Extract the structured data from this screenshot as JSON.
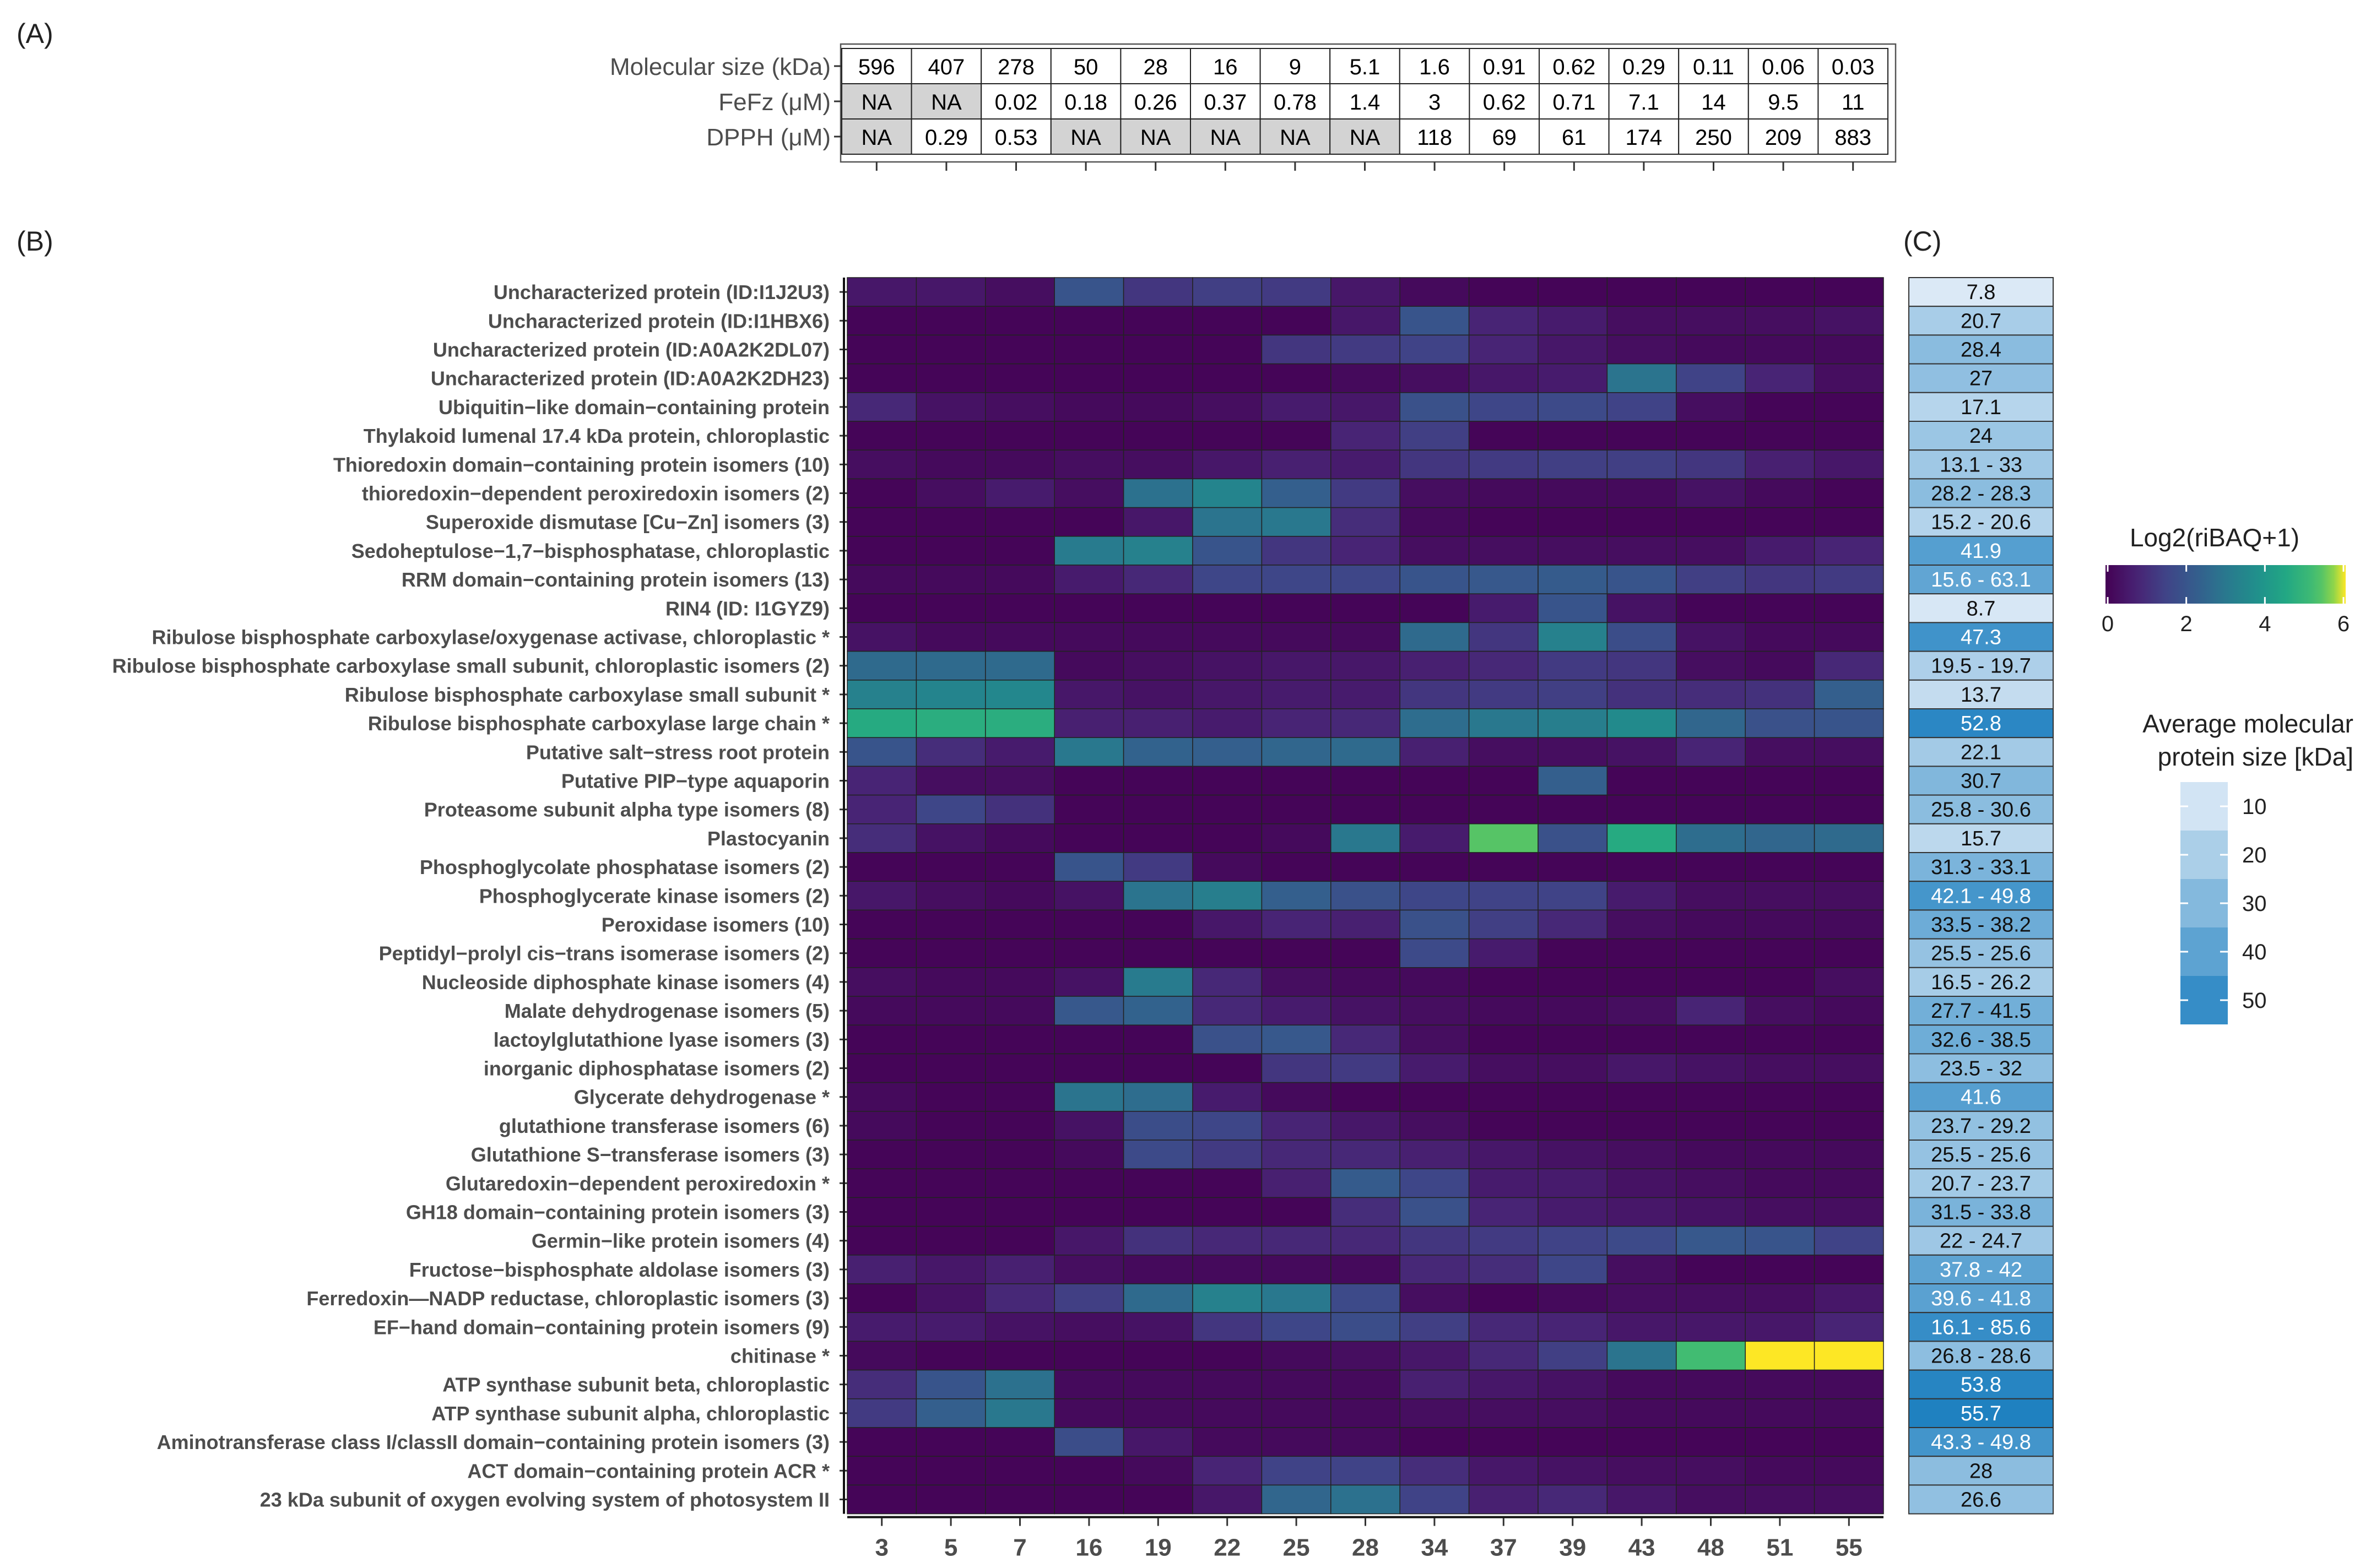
{
  "panel_labels": {
    "a": "(A)",
    "b": "(B)",
    "c": "(C)"
  },
  "chart_data": [
    {
      "type": "table",
      "panel": "(A)",
      "row_labels": [
        "Molecular size (kDa)",
        "FeFz (μM)",
        "DPPH (μM)"
      ],
      "rows": [
        [
          "596",
          "407",
          "278",
          "50",
          "28",
          "16",
          "9",
          "5.1",
          "1.6",
          "0.91",
          "0.62",
          "0.29",
          "0.11",
          "0.06",
          "0.03"
        ],
        [
          "NA",
          "NA",
          "0.02",
          "0.18",
          "0.26",
          "0.37",
          "0.78",
          "1.4",
          "3",
          "0.62",
          "0.71",
          "7.1",
          "14",
          "9.5",
          "11"
        ],
        [
          "NA",
          "0.29",
          "0.53",
          "NA",
          "NA",
          "NA",
          "NA",
          "NA",
          "118",
          "69",
          "61",
          "174",
          "250",
          "209",
          "883"
        ]
      ],
      "na_label": "NA"
    },
    {
      "type": "heatmap",
      "panel": "(B)",
      "x": [
        "3",
        "5",
        "7",
        "16",
        "19",
        "22",
        "25",
        "28",
        "34",
        "37",
        "39",
        "43",
        "48",
        "51",
        "55"
      ],
      "y": [
        "Uncharacterized protein (ID:I1J2U3)",
        "Uncharacterized protein (ID:I1HBX6)",
        "Uncharacterized protein (ID:A0A2K2DL07)",
        "Uncharacterized protein (ID:A0A2K2DH23)",
        "Ubiquitin−like domain−containing protein",
        "Thylakoid lumenal 17.4 kDa protein, chloroplastic",
        "Thioredoxin domain−containing protein isomers (10)",
        "thioredoxin−dependent peroxiredoxin isomers (2)",
        "Superoxide dismutase [Cu−Zn] isomers (3)",
        "Sedoheptulose−1,7−bisphosphatase, chloroplastic",
        "RRM domain−containing protein isomers (13)",
        "RIN4 (ID: I1GYZ9)",
        "Ribulose bisphosphate carboxylase/oxygenase activase, chloroplastic *",
        "Ribulose bisphosphate carboxylase small subunit, chloroplastic isomers (2)",
        "Ribulose bisphosphate carboxylase small subunit *",
        "Ribulose bisphosphate carboxylase large chain *",
        "Putative salt−stress root protein",
        "Putative PIP−type aquaporin",
        "Proteasome subunit alpha type isomers (8)",
        "Plastocyanin",
        "Phosphoglycolate phosphatase isomers (2)",
        "Phosphoglycerate kinase isomers (2)",
        "Peroxidase isomers (10)",
        "Peptidyl−prolyl cis−trans isomerase isomers (2)",
        "Nucleoside diphosphate kinase isomers (4)",
        "Malate dehydrogenase isomers (5)",
        "lactoylglutathione lyase isomers (3)",
        "inorganic diphosphatase isomers (2)",
        "Glycerate dehydrogenase *",
        "glutathione transferase isomers (6)",
        "Glutathione S−transferase isomers (3)",
        "Glutaredoxin−dependent peroxiredoxin *",
        "GH18 domain−containing protein isomers (3)",
        "Germin−like protein isomers (4)",
        "Fructose−bisphosphate aldolase isomers (3)",
        "Ferredoxin—NADP reductase, chloroplastic isomers (3)",
        "EF−hand domain−containing protein isomers (9)",
        "chitinase *",
        "ATP synthase subunit beta, chloroplastic",
        "ATP synthase subunit alpha, chloroplastic",
        "Aminotransferase class I/classII domain−containing protein isomers (3)",
        "ACT domain−containing protein ACR *",
        "23 kDa subunit of oxygen evolving system of photosystem II"
      ],
      "values": [
        [
          0.5,
          0.5,
          0.3,
          2.0,
          1.2,
          1.4,
          1.3,
          0.5,
          0.2,
          0.1,
          0.1,
          0.1,
          0.1,
          0.1,
          0.1
        ],
        [
          0.1,
          0.1,
          0.1,
          0.1,
          0.1,
          0.1,
          0.1,
          0.5,
          2.0,
          0.8,
          0.6,
          0.3,
          0.3,
          0.3,
          0.4
        ],
        [
          0.1,
          0.1,
          0.1,
          0.1,
          0.1,
          0.1,
          1.2,
          1.3,
          1.5,
          0.8,
          0.5,
          0.3,
          0.2,
          0.2,
          0.2
        ],
        [
          0.1,
          0.1,
          0.1,
          0.1,
          0.1,
          0.1,
          0.1,
          0.2,
          0.3,
          0.5,
          0.6,
          2.9,
          1.5,
          0.8,
          0.3
        ],
        [
          0.9,
          0.4,
          0.3,
          0.2,
          0.2,
          0.3,
          0.6,
          0.5,
          1.9,
          1.6,
          1.7,
          1.5,
          0.3,
          0.1,
          0.1
        ],
        [
          0.1,
          0.1,
          0.1,
          0.1,
          0.1,
          0.1,
          0.1,
          0.8,
          1.4,
          0.1,
          0.1,
          0.1,
          0.1,
          0.1,
          0.1
        ],
        [
          0.3,
          0.2,
          0.2,
          0.3,
          0.3,
          0.5,
          0.7,
          0.6,
          1.2,
          1.3,
          1.4,
          1.4,
          1.2,
          0.7,
          0.5
        ],
        [
          0.1,
          0.3,
          0.6,
          0.3,
          2.8,
          3.4,
          2.3,
          1.3,
          0.3,
          0.2,
          0.2,
          0.2,
          0.4,
          0.2,
          0.1
        ],
        [
          0.1,
          0.1,
          0.1,
          0.1,
          0.5,
          2.9,
          3.0,
          1.0,
          0.2,
          0.1,
          0.1,
          0.1,
          0.1,
          0.1,
          0.1
        ],
        [
          0.1,
          0.1,
          0.1,
          3.1,
          3.3,
          2.0,
          1.2,
          0.8,
          0.3,
          0.3,
          0.3,
          0.3,
          0.3,
          0.6,
          0.8
        ],
        [
          0.2,
          0.2,
          0.2,
          0.6,
          0.9,
          1.6,
          1.6,
          1.6,
          2.0,
          2.1,
          2.2,
          2.0,
          1.4,
          1.2,
          1.3
        ],
        [
          0.1,
          0.1,
          0.1,
          0.1,
          0.1,
          0.1,
          0.1,
          0.1,
          0.1,
          0.6,
          2.0,
          0.4,
          0.1,
          0.1,
          0.1
        ],
        [
          0.4,
          0.2,
          0.2,
          0.2,
          0.2,
          0.2,
          0.2,
          0.2,
          2.6,
          1.2,
          3.3,
          1.8,
          0.4,
          0.2,
          0.2
        ],
        [
          2.6,
          2.6,
          2.6,
          0.2,
          0.3,
          0.4,
          0.5,
          0.5,
          0.7,
          0.9,
          1.3,
          1.2,
          0.3,
          0.2,
          0.9
        ],
        [
          3.3,
          3.4,
          3.5,
          0.5,
          0.4,
          0.5,
          0.6,
          0.6,
          1.2,
          1.3,
          1.4,
          1.1,
          1.0,
          1.1,
          2.3
        ],
        [
          4.6,
          4.7,
          4.7,
          0.7,
          0.7,
          0.6,
          0.8,
          0.9,
          2.7,
          3.0,
          3.2,
          3.6,
          2.5,
          1.9,
          2.0
        ],
        [
          2.0,
          1.0,
          0.6,
          3.0,
          2.4,
          2.3,
          2.5,
          2.6,
          0.7,
          0.3,
          0.3,
          0.4,
          0.8,
          0.3,
          0.3
        ],
        [
          0.8,
          0.3,
          0.3,
          0.1,
          0.1,
          0.1,
          0.1,
          0.1,
          0.1,
          0.1,
          2.3,
          0.1,
          0.1,
          0.1,
          0.1
        ],
        [
          0.8,
          1.6,
          1.1,
          0.1,
          0.1,
          0.1,
          0.1,
          0.1,
          0.1,
          0.1,
          0.1,
          0.1,
          0.1,
          0.1,
          0.1
        ],
        [
          1.0,
          0.4,
          0.2,
          0.1,
          0.1,
          0.1,
          0.2,
          3.0,
          0.6,
          5.4,
          1.9,
          4.6,
          2.7,
          2.5,
          2.6
        ],
        [
          0.1,
          0.1,
          0.1,
          2.0,
          1.3,
          0.2,
          0.1,
          0.1,
          0.1,
          0.1,
          0.1,
          0.1,
          0.1,
          0.1,
          0.1
        ],
        [
          0.5,
          0.3,
          0.2,
          0.4,
          2.9,
          3.2,
          2.3,
          1.9,
          1.6,
          1.5,
          1.5,
          0.6,
          0.3,
          0.3,
          0.3
        ],
        [
          0.1,
          0.1,
          0.1,
          0.1,
          0.1,
          0.5,
          0.8,
          0.7,
          1.9,
          1.4,
          0.9,
          0.3,
          0.2,
          0.2,
          0.2
        ],
        [
          0.1,
          0.1,
          0.1,
          0.1,
          0.1,
          0.1,
          0.1,
          0.1,
          1.7,
          0.6,
          0.1,
          0.1,
          0.1,
          0.1,
          0.1
        ],
        [
          0.3,
          0.2,
          0.2,
          0.4,
          3.1,
          0.9,
          0.3,
          0.2,
          0.2,
          0.1,
          0.1,
          0.1,
          0.1,
          0.1,
          0.3
        ],
        [
          0.2,
          0.2,
          0.2,
          2.1,
          2.4,
          0.9,
          0.6,
          0.4,
          0.3,
          0.2,
          0.2,
          0.3,
          0.8,
          0.3,
          0.2
        ],
        [
          0.1,
          0.1,
          0.1,
          0.1,
          0.1,
          1.9,
          2.1,
          0.9,
          0.3,
          0.1,
          0.1,
          0.1,
          0.1,
          0.1,
          0.1
        ],
        [
          0.1,
          0.1,
          0.1,
          0.1,
          0.1,
          0.1,
          1.2,
          1.3,
          0.6,
          0.3,
          0.3,
          0.5,
          0.4,
          0.3,
          0.3
        ],
        [
          0.2,
          0.1,
          0.1,
          2.9,
          2.7,
          0.6,
          0.2,
          0.1,
          0.1,
          0.1,
          0.1,
          0.1,
          0.1,
          0.1,
          0.1
        ],
        [
          0.2,
          0.1,
          0.1,
          0.4,
          1.8,
          1.6,
          0.8,
          0.5,
          0.3,
          0.1,
          0.1,
          0.1,
          0.1,
          0.1,
          0.1
        ],
        [
          0.1,
          0.1,
          0.1,
          0.2,
          1.7,
          1.3,
          0.9,
          0.9,
          0.7,
          0.5,
          0.4,
          0.3,
          0.2,
          0.2,
          0.2
        ],
        [
          0.1,
          0.1,
          0.1,
          0.1,
          0.1,
          0.1,
          0.7,
          2.2,
          1.6,
          0.6,
          0.6,
          0.4,
          0.3,
          0.2,
          0.2
        ],
        [
          0.1,
          0.1,
          0.1,
          0.1,
          0.1,
          0.1,
          0.1,
          1.0,
          1.9,
          0.8,
          0.6,
          0.5,
          0.4,
          0.3,
          0.3
        ],
        [
          0.1,
          0.1,
          0.1,
          0.5,
          1.1,
          0.9,
          0.9,
          0.9,
          1.2,
          1.3,
          1.5,
          1.7,
          2.1,
          2.0,
          1.5
        ],
        [
          0.7,
          0.5,
          0.7,
          0.3,
          0.2,
          0.2,
          0.2,
          0.2,
          0.9,
          1.0,
          1.6,
          0.3,
          0.1,
          0.1,
          0.1
        ],
        [
          0.1,
          0.4,
          0.9,
          1.4,
          2.6,
          3.3,
          3.0,
          1.7,
          0.3,
          0.1,
          0.2,
          0.3,
          0.3,
          0.3,
          0.5
        ],
        [
          0.6,
          0.6,
          0.4,
          0.3,
          0.4,
          1.2,
          1.6,
          1.8,
          1.4,
          0.9,
          0.8,
          0.5,
          0.5,
          0.5,
          0.8
        ],
        [
          0.2,
          0.1,
          0.1,
          0.1,
          0.1,
          0.1,
          0.2,
          0.3,
          0.5,
          0.9,
          1.4,
          2.9,
          5.2,
          6.0,
          6.0
        ],
        [
          1.0,
          2.0,
          2.8,
          0.2,
          0.2,
          0.2,
          0.2,
          0.2,
          0.7,
          0.5,
          0.4,
          0.2,
          0.2,
          0.2,
          0.2
        ],
        [
          1.3,
          2.3,
          3.0,
          0.2,
          0.2,
          0.2,
          0.2,
          0.2,
          0.3,
          0.3,
          0.3,
          0.2,
          0.2,
          0.2,
          0.2
        ],
        [
          0.1,
          0.1,
          0.1,
          1.8,
          0.5,
          0.2,
          0.2,
          0.2,
          0.1,
          0.1,
          0.1,
          0.1,
          0.1,
          0.1,
          0.1
        ],
        [
          0.1,
          0.1,
          0.1,
          0.1,
          0.2,
          0.8,
          1.5,
          1.5,
          1.0,
          0.5,
          0.4,
          0.3,
          0.3,
          0.2,
          0.2
        ],
        [
          0.1,
          0.1,
          0.1,
          0.1,
          0.1,
          0.5,
          2.5,
          2.8,
          1.5,
          0.7,
          0.9,
          0.5,
          0.3,
          0.3,
          0.3
        ]
      ],
      "colorbar": {
        "title": "Log2(riBAQ+1)",
        "ticks": [
          "0",
          "2",
          "4",
          "6"
        ],
        "range": [
          0,
          6
        ],
        "palette": "viridis"
      }
    },
    {
      "type": "table",
      "panel": "(C)",
      "title": "Average molecular protein size [kDa]",
      "labels": [
        "7.8",
        "20.7",
        "28.4",
        "27",
        "17.1",
        "24",
        "13.1 - 33",
        "28.2 - 28.3",
        "15.2 - 20.6",
        "41.9",
        "15.6 - 63.1",
        "8.7",
        "47.3",
        "19.5 - 19.7",
        "13.7",
        "52.8",
        "22.1",
        "30.7",
        "25.8 - 30.6",
        "15.7",
        "31.3 - 33.1",
        "42.1 - 49.8",
        "33.5 - 38.2",
        "25.5 - 25.6",
        "16.5 - 26.2",
        "27.7 - 41.5",
        "32.6 - 38.5",
        "23.5 - 32",
        "41.6",
        "23.7 - 29.2",
        "25.5 - 25.6",
        "20.7 - 23.7",
        "31.5 - 33.8",
        "22 - 24.7",
        "37.8 - 42",
        "39.6 - 41.8",
        "16.1 - 85.6",
        "26.8 - 28.6",
        "53.8",
        "55.7",
        "43.3 - 49.8",
        "28",
        "26.6"
      ],
      "values": [
        7.8,
        20.7,
        28.4,
        27,
        17.1,
        24,
        23,
        28.25,
        17.9,
        41.9,
        39,
        8.7,
        47.3,
        19.6,
        13.7,
        52.8,
        22.1,
        30.7,
        28.2,
        15.7,
        32.2,
        46,
        35.8,
        25.55,
        21.3,
        34.6,
        35.5,
        27.7,
        41.6,
        26.4,
        25.55,
        22.2,
        32.6,
        23.3,
        39.9,
        40.7,
        50,
        27.7,
        53.8,
        55.7,
        46.5,
        28,
        26.6
      ],
      "legend_ticks": [
        "10",
        "20",
        "30",
        "40",
        "50"
      ],
      "range": [
        7,
        56
      ]
    }
  ]
}
